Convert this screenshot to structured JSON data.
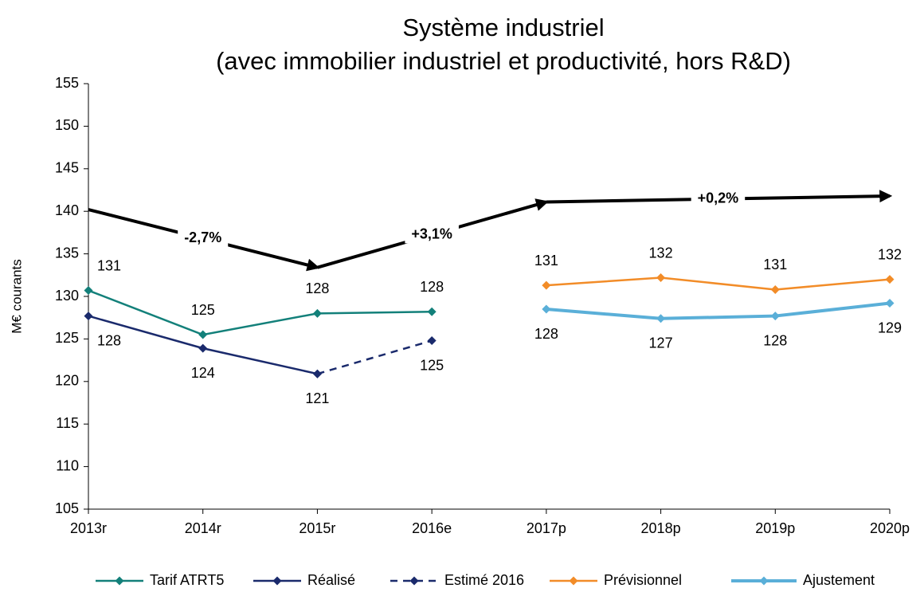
{
  "chart_data": {
    "type": "line",
    "title": "Système industriel",
    "subtitle": "(avec immobilier industriel et productivité, hors R&D)",
    "y_label": "M€ courants",
    "categories": [
      "2013r",
      "2014r",
      "2015r",
      "2016e",
      "2017p",
      "2018p",
      "2019p",
      "2020p"
    ],
    "ylim": [
      105,
      155
    ],
    "yticks": [
      105,
      110,
      115,
      120,
      125,
      130,
      135,
      140,
      145,
      150,
      155
    ],
    "grid": false,
    "legend": "bottom",
    "series": [
      {
        "name": "Tarif ATRT5",
        "color": "#13807a",
        "label_position": "above",
        "values": [
          130.7,
          125.5,
          128.0,
          128.2,
          null,
          null,
          null,
          null
        ],
        "value_labels": [
          "131",
          "125",
          "128",
          "128",
          null,
          null,
          null,
          null
        ]
      },
      {
        "name": "Réalisé",
        "color": "#1a2a6c",
        "label_position": "below",
        "values": [
          127.7,
          123.9,
          120.9,
          null,
          null,
          null,
          null,
          null
        ],
        "value_labels": [
          "128",
          "124",
          "121",
          null,
          null,
          null,
          null,
          null
        ]
      },
      {
        "name": "Estimé 2016",
        "color": "#1a2a6c",
        "dashed": true,
        "label_position": "below",
        "values": [
          null,
          null,
          120.9,
          124.8,
          null,
          null,
          null,
          null
        ],
        "value_labels": [
          null,
          null,
          null,
          "125",
          null,
          null,
          null,
          null
        ]
      },
      {
        "name": "Prévisionnel",
        "color": "#f28c28",
        "label_position": "above",
        "values": [
          null,
          null,
          null,
          null,
          131.3,
          132.2,
          130.8,
          132.0
        ],
        "value_labels": [
          null,
          null,
          null,
          null,
          "131",
          "132",
          "131",
          "132"
        ]
      },
      {
        "name": "Ajustement",
        "color": "#5aafd8",
        "thick": true,
        "label_position": "below",
        "values": [
          null,
          null,
          null,
          null,
          128.5,
          127.4,
          127.7,
          129.2
        ],
        "value_labels": [
          null,
          null,
          null,
          null,
          "128",
          "127",
          "128",
          "129"
        ]
      }
    ],
    "annotations": [
      {
        "text": "-2,7%",
        "from": 0,
        "to": 2,
        "start": 140.2,
        "end": 133.4
      },
      {
        "text": "+3,1%",
        "from": 2,
        "to": 4,
        "start": 133.4,
        "end": 141.1
      },
      {
        "text": "+0,2%",
        "from": 4,
        "to": 7,
        "start": 141.1,
        "end": 141.8
      }
    ]
  }
}
